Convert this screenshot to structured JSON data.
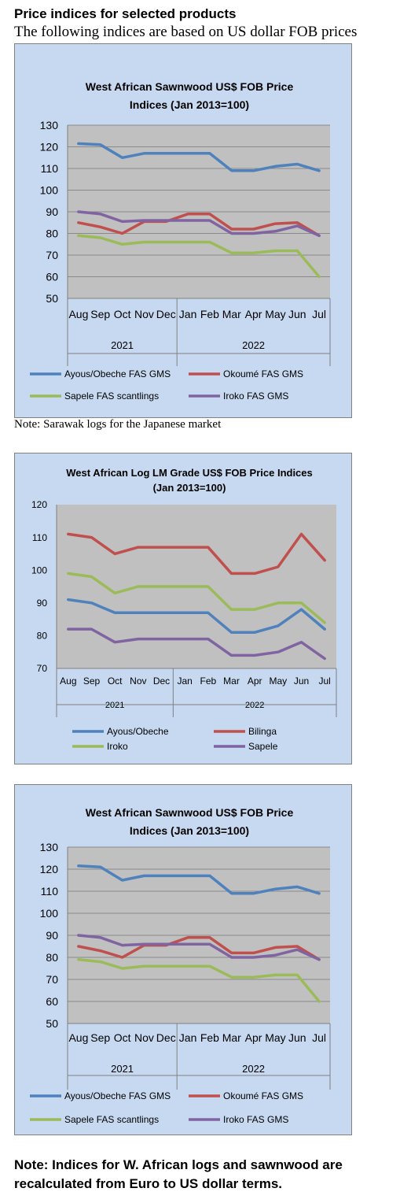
{
  "header": {
    "title": "Price indices for selected products",
    "subtitle": "The following indices are based on US dollar FOB prices"
  },
  "notes": {
    "note1": "Note: Sarawak logs for the Japanese market",
    "note2": "Note: Indices for W. African logs and sawnwood are recalculated from Euro to US dollar terms."
  },
  "colors": {
    "chart_bg": "#c6d9f0",
    "plot_bg": "#c0c0c0",
    "blue": "#4f81bd",
    "red": "#c0504d",
    "green": "#9bbb59",
    "purple": "#8064a2"
  },
  "chart_data": [
    {
      "type": "line",
      "title": [
        "West African Sawnwood US$ FOB Price",
        "Indices (Jan 2013=100)"
      ],
      "categories": [
        "Aug",
        "Sep",
        "Oct",
        "Nov",
        "Dec",
        "Jan",
        "Feb",
        "Mar",
        "Apr",
        "May",
        "Jun",
        "Jul"
      ],
      "groups": [
        {
          "label": "2021",
          "from": 0,
          "to": 4
        },
        {
          "label": "2022",
          "from": 5,
          "to": 11
        }
      ],
      "ylim": [
        50,
        130
      ],
      "yticks": [
        50,
        60,
        70,
        80,
        90,
        100,
        110,
        120,
        130
      ],
      "grid": true,
      "legend": "bottom",
      "series": [
        {
          "name": "Ayous/Obeche FAS GMS",
          "color": "#4f81bd",
          "values": [
            121.5,
            121,
            115,
            117,
            117,
            117,
            117,
            109,
            109,
            111,
            112,
            109
          ]
        },
        {
          "name": "Okoumé FAS GMS",
          "color": "#c0504d",
          "values": [
            85,
            83,
            80,
            85.5,
            85.5,
            89,
            89,
            82,
            82,
            84.5,
            85,
            79
          ]
        },
        {
          "name": "Sapele FAS scantlings",
          "color": "#9bbb59",
          "values": [
            79,
            78,
            75,
            76,
            76,
            76,
            76,
            71,
            71,
            72,
            72,
            60
          ]
        },
        {
          "name": "Iroko FAS GMS",
          "color": "#8064a2",
          "values": [
            90,
            89,
            85.5,
            86,
            86,
            86,
            86,
            80,
            80,
            81,
            83.5,
            79
          ]
        }
      ]
    },
    {
      "type": "line",
      "title": [
        "West African Log LM Grade US$ FOB Price Indices",
        "(Jan 2013=100)"
      ],
      "categories": [
        "Aug",
        "Sep",
        "Oct",
        "Nov",
        "Dec",
        "Jan",
        "Feb",
        "Mar",
        "Apr",
        "May",
        "Jun",
        "Jul"
      ],
      "groups": [
        {
          "label": "2021",
          "from": 0,
          "to": 4
        },
        {
          "label": "2022",
          "from": 5,
          "to": 11
        }
      ],
      "ylim": [
        70,
        120
      ],
      "yticks": [
        70,
        80,
        90,
        100,
        110,
        120
      ],
      "grid": false,
      "legend": "bottom",
      "series": [
        {
          "name": "Ayous/Obeche",
          "color": "#4f81bd",
          "values": [
            91,
            90,
            87,
            87,
            87,
            87,
            87,
            81,
            81,
            83,
            88,
            82
          ]
        },
        {
          "name": "Bilinga",
          "color": "#c0504d",
          "values": [
            111,
            110,
            105,
            107,
            107,
            107,
            107,
            99,
            99,
            101,
            111,
            103
          ]
        },
        {
          "name": "Iroko",
          "color": "#9bbb59",
          "values": [
            99,
            98,
            93,
            95,
            95,
            95,
            95,
            88,
            88,
            90,
            90,
            84
          ]
        },
        {
          "name": "Sapele",
          "color": "#8064a2",
          "values": [
            82,
            82,
            78,
            79,
            79,
            79,
            79,
            74,
            74,
            75,
            78,
            73
          ]
        }
      ]
    },
    {
      "type": "line",
      "title": [
        "West African Sawnwood US$ FOB Price",
        "Indices (Jan 2013=100)"
      ],
      "categories": [
        "Aug",
        "Sep",
        "Oct",
        "Nov",
        "Dec",
        "Jan",
        "Feb",
        "Mar",
        "Apr",
        "May",
        "Jun",
        "Jul"
      ],
      "groups": [
        {
          "label": "2021",
          "from": 0,
          "to": 4
        },
        {
          "label": "2022",
          "from": 5,
          "to": 11
        }
      ],
      "ylim": [
        50,
        130
      ],
      "yticks": [
        50,
        60,
        70,
        80,
        90,
        100,
        110,
        120,
        130
      ],
      "grid": true,
      "legend": "bottom",
      "series": [
        {
          "name": "Ayous/Obeche FAS GMS",
          "color": "#4f81bd",
          "values": [
            121.5,
            121,
            115,
            117,
            117,
            117,
            117,
            109,
            109,
            111,
            112,
            109
          ]
        },
        {
          "name": "Okoumé FAS GMS",
          "color": "#c0504d",
          "values": [
            85,
            83,
            80,
            85.5,
            85.5,
            89,
            89,
            82,
            82,
            84.5,
            85,
            79
          ]
        },
        {
          "name": "Sapele FAS scantlings",
          "color": "#9bbb59",
          "values": [
            79,
            78,
            75,
            76,
            76,
            76,
            76,
            71,
            71,
            72,
            72,
            60
          ]
        },
        {
          "name": "Iroko FAS GMS",
          "color": "#8064a2",
          "values": [
            90,
            89,
            85.5,
            86,
            86,
            86,
            86,
            80,
            80,
            81,
            83.5,
            79
          ]
        }
      ]
    }
  ]
}
